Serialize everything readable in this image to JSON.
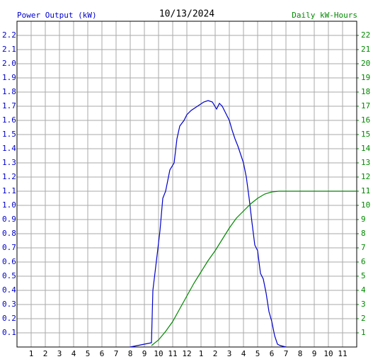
{
  "chart_data": {
    "type": "line",
    "title": "10/13/2024",
    "y_label": "Power Output (kW)",
    "y2_label": "Daily kW-Hours",
    "xlim": [
      0,
      24
    ],
    "ylim": [
      0,
      2.3
    ],
    "y2lim": [
      0,
      23
    ],
    "grid": true,
    "xticks": [
      1,
      2,
      3,
      4,
      5,
      6,
      7,
      8,
      9,
      10,
      11,
      12,
      {
        "value": 13,
        "label": "1"
      },
      {
        "value": 14,
        "label": "2"
      },
      {
        "value": 15,
        "label": "3"
      },
      {
        "value": 16,
        "label": "4"
      },
      {
        "value": 17,
        "label": "5"
      },
      {
        "value": 18,
        "label": "6"
      },
      {
        "value": 19,
        "label": "7"
      },
      {
        "value": 20,
        "label": "8"
      },
      {
        "value": 21,
        "label": "9"
      },
      {
        "value": 22,
        "label": "10"
      },
      {
        "value": 23,
        "label": "11"
      }
    ],
    "yticks": [
      0.1,
      0.2,
      0.3,
      0.4,
      0.5,
      0.6,
      0.7,
      0.8,
      0.9,
      {
        "value": 1,
        "label": "1.0"
      },
      1.1,
      1.2,
      1.3,
      1.4,
      1.5,
      1.6,
      1.7,
      1.8,
      1.9,
      {
        "value": 2,
        "label": "2.0"
      },
      2.1,
      2.2
    ],
    "y2ticks": [
      1,
      2,
      3,
      4,
      5,
      6,
      7,
      8,
      9,
      10,
      11,
      12,
      13,
      14,
      15,
      16,
      17,
      18,
      19,
      20,
      21,
      22
    ],
    "series": [
      {
        "name": "Power Output (kW)",
        "color": "#0000cc",
        "x": [
          8,
          9,
          9.5,
          9.6,
          9.9,
          10.1,
          10.3,
          10.5,
          10.8,
          11.1,
          11.3,
          11.5,
          11.8,
          12,
          12.3,
          12.6,
          12.9,
          13.2,
          13.5,
          13.8,
          14.1,
          14.3,
          14.5,
          14.7,
          15,
          15.2,
          15.4,
          15.6,
          15.8,
          16,
          16.2,
          16.4,
          16.6,
          16.8,
          17,
          17.2,
          17.4,
          17.6,
          17.8,
          18,
          18.2,
          18.4,
          18.6,
          19
        ],
        "values": [
          0,
          0.02,
          0.03,
          0.4,
          0.65,
          0.82,
          1.05,
          1.1,
          1.25,
          1.3,
          1.47,
          1.56,
          1.6,
          1.64,
          1.67,
          1.69,
          1.71,
          1.73,
          1.74,
          1.73,
          1.68,
          1.72,
          1.7,
          1.66,
          1.6,
          1.53,
          1.47,
          1.42,
          1.36,
          1.3,
          1.2,
          1.05,
          0.88,
          0.72,
          0.68,
          0.52,
          0.48,
          0.38,
          0.25,
          0.18,
          0.08,
          0.02,
          0.01,
          0
        ]
      },
      {
        "name": "Daily kW-Hours",
        "color": "#008800",
        "axis": "y2",
        "x": [
          9.5,
          10,
          10.5,
          11,
          11.5,
          12,
          12.5,
          13,
          13.5,
          14,
          14.5,
          15,
          15.5,
          16,
          16.5,
          17,
          17.5,
          18,
          18.5,
          24
        ],
        "values": [
          0.1,
          0.5,
          1.1,
          1.8,
          2.7,
          3.6,
          4.5,
          5.3,
          6.1,
          6.8,
          7.6,
          8.4,
          9.1,
          9.6,
          10.1,
          10.5,
          10.8,
          10.95,
          11,
          11
        ]
      }
    ]
  }
}
